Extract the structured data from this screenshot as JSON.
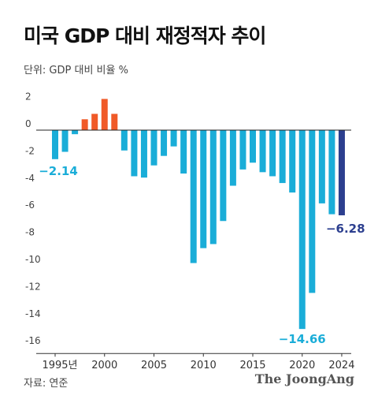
{
  "title": "미국 GDP 대비 재정적자 추이",
  "unit_label": "단위: GDP 대비 비율 %",
  "source": "자료: 연준",
  "logo_text": "The JoongAng",
  "colors": {
    "negative": "#1aadd8",
    "positive": "#f05a28",
    "highlight": "#2c3f8f",
    "axis_text": "#444444"
  },
  "chart_data": {
    "type": "bar",
    "title": "미국 GDP 대비 재정적자 추이",
    "ylabel": "단위: GDP 대비 비율 %",
    "ylim": [
      -16,
      2
    ],
    "yticks": [
      2,
      0,
      -2,
      -4,
      -6,
      -8,
      -10,
      -12,
      -14,
      -16
    ],
    "x_tick_labels": [
      {
        "year": 1995,
        "label": "1995년"
      },
      {
        "year": 2000,
        "label": "2000"
      },
      {
        "year": 2005,
        "label": "2005"
      },
      {
        "year": 2010,
        "label": "2010"
      },
      {
        "year": 2015,
        "label": "2015"
      },
      {
        "year": 2020,
        "label": "2020"
      },
      {
        "year": 2024,
        "label": "2024"
      }
    ],
    "categories": [
      1995,
      1996,
      1997,
      1998,
      1999,
      2000,
      2001,
      2002,
      2003,
      2004,
      2005,
      2006,
      2007,
      2008,
      2009,
      2010,
      2011,
      2012,
      2013,
      2014,
      2015,
      2016,
      2017,
      2018,
      2019,
      2020,
      2021,
      2022,
      2023,
      2024
    ],
    "values": [
      -2.14,
      -1.6,
      -0.3,
      0.8,
      1.2,
      2.3,
      1.2,
      -1.5,
      -3.4,
      -3.5,
      -2.6,
      -1.9,
      -1.2,
      -3.2,
      -9.8,
      -8.7,
      -8.4,
      -6.7,
      -4.1,
      -2.9,
      -2.4,
      -3.1,
      -3.4,
      -3.9,
      -4.6,
      -14.66,
      -12.0,
      -5.4,
      -6.2,
      -6.28
    ],
    "data_labels": [
      {
        "year": 1995,
        "text": "−2.14"
      },
      {
        "year": 2020,
        "text": "−14.66"
      },
      {
        "year": 2024,
        "text": "−6.28"
      }
    ],
    "highlight_year": 2024
  }
}
